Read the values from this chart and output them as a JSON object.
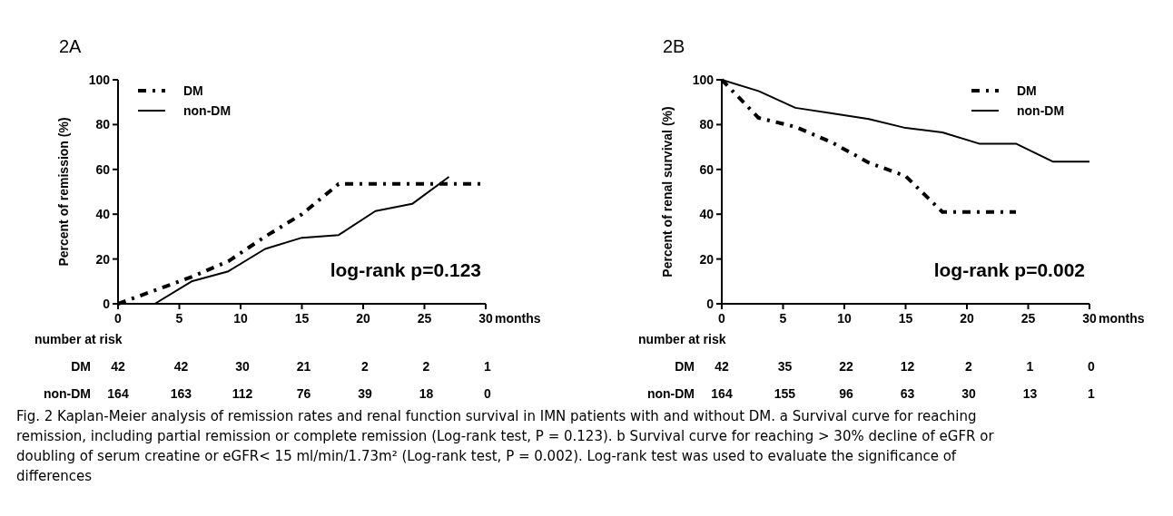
{
  "chart_data": [
    {
      "type": "line",
      "title": "2A",
      "xlabel": "months",
      "ylabel": "Percent of remission (%)",
      "xlim": [
        0,
        30
      ],
      "xticks": [
        0,
        5,
        10,
        15,
        20,
        25,
        30
      ],
      "ylim": [
        0,
        100
      ],
      "yticks": [
        0,
        20,
        40,
        60,
        80,
        100
      ],
      "legend": "top left",
      "marker": "none",
      "series": [
        {
          "name": "DM",
          "color": "#000000",
          "line_style": "dashed",
          "x": [
            0,
            3,
            6,
            9,
            12,
            15,
            18,
            30
          ],
          "values": [
            0,
            6,
            12,
            19,
            30,
            40,
            53.5,
            53.5
          ]
        },
        {
          "name": "non-DM",
          "color": "#000000",
          "line_style": "solid",
          "x": [
            0,
            3,
            6,
            9,
            12,
            15,
            18,
            21,
            24,
            27
          ],
          "values": [
            0,
            0,
            10,
            14.5,
            24.5,
            29.5,
            30.7,
            41.4,
            44.6,
            56.7
          ]
        }
      ],
      "annotations": [
        "log-rank p=0.123",
        "number at risk",
        "DM",
        "42 42 30 21 2 2 1",
        "non-DM",
        "164 163 112 76 39 18 0"
      ]
    },
    {
      "type": "line",
      "title": "2B",
      "xlabel": "months",
      "ylabel": "Percent of renal survival (%)",
      "xlim": [
        0,
        30
      ],
      "xticks": [
        0,
        5,
        10,
        15,
        20,
        25,
        30
      ],
      "ylim": [
        0,
        100
      ],
      "yticks": [
        0,
        20,
        40,
        60,
        80,
        100
      ],
      "legend": "top right",
      "marker": "none",
      "series": [
        {
          "name": "DM",
          "color": "#000000",
          "line_style": "dashed",
          "x": [
            0,
            3,
            6,
            9,
            12,
            15,
            18,
            24
          ],
          "values": [
            100,
            83,
            79,
            72,
            63,
            57,
            41,
            41
          ]
        },
        {
          "name": "non-DM",
          "color": "#000000",
          "line_style": "solid",
          "x": [
            0,
            3,
            6,
            9,
            12,
            15,
            18,
            21,
            24,
            27,
            30
          ],
          "values": [
            100,
            95,
            87.5,
            85,
            82.5,
            78.5,
            76.5,
            71.5,
            71.5,
            63.5,
            63.5
          ]
        }
      ],
      "annotations": [
        "log-rank p=0.002",
        "number at risk",
        "DM",
        "42 35 22 12 2 1 0",
        "non-DM",
        "164 155 96 63 30 13 1",
        "Fig. 2 Kaplan-Meier analysis of remission rates and renal function survival in IMN patients with and without DM. a Survival curve for reaching remission, including partial remission or complete remission (Log-rank test, P = 0.123). b Survival curve for reaching > 30% decline of eGFR or doubling of serum creatine or eGFR< 15 ml/min/1.73m² (Log-rank test, P = 0.002). Log-rank test was used to evaluate the significance of differences"
      ]
    }
  ]
}
